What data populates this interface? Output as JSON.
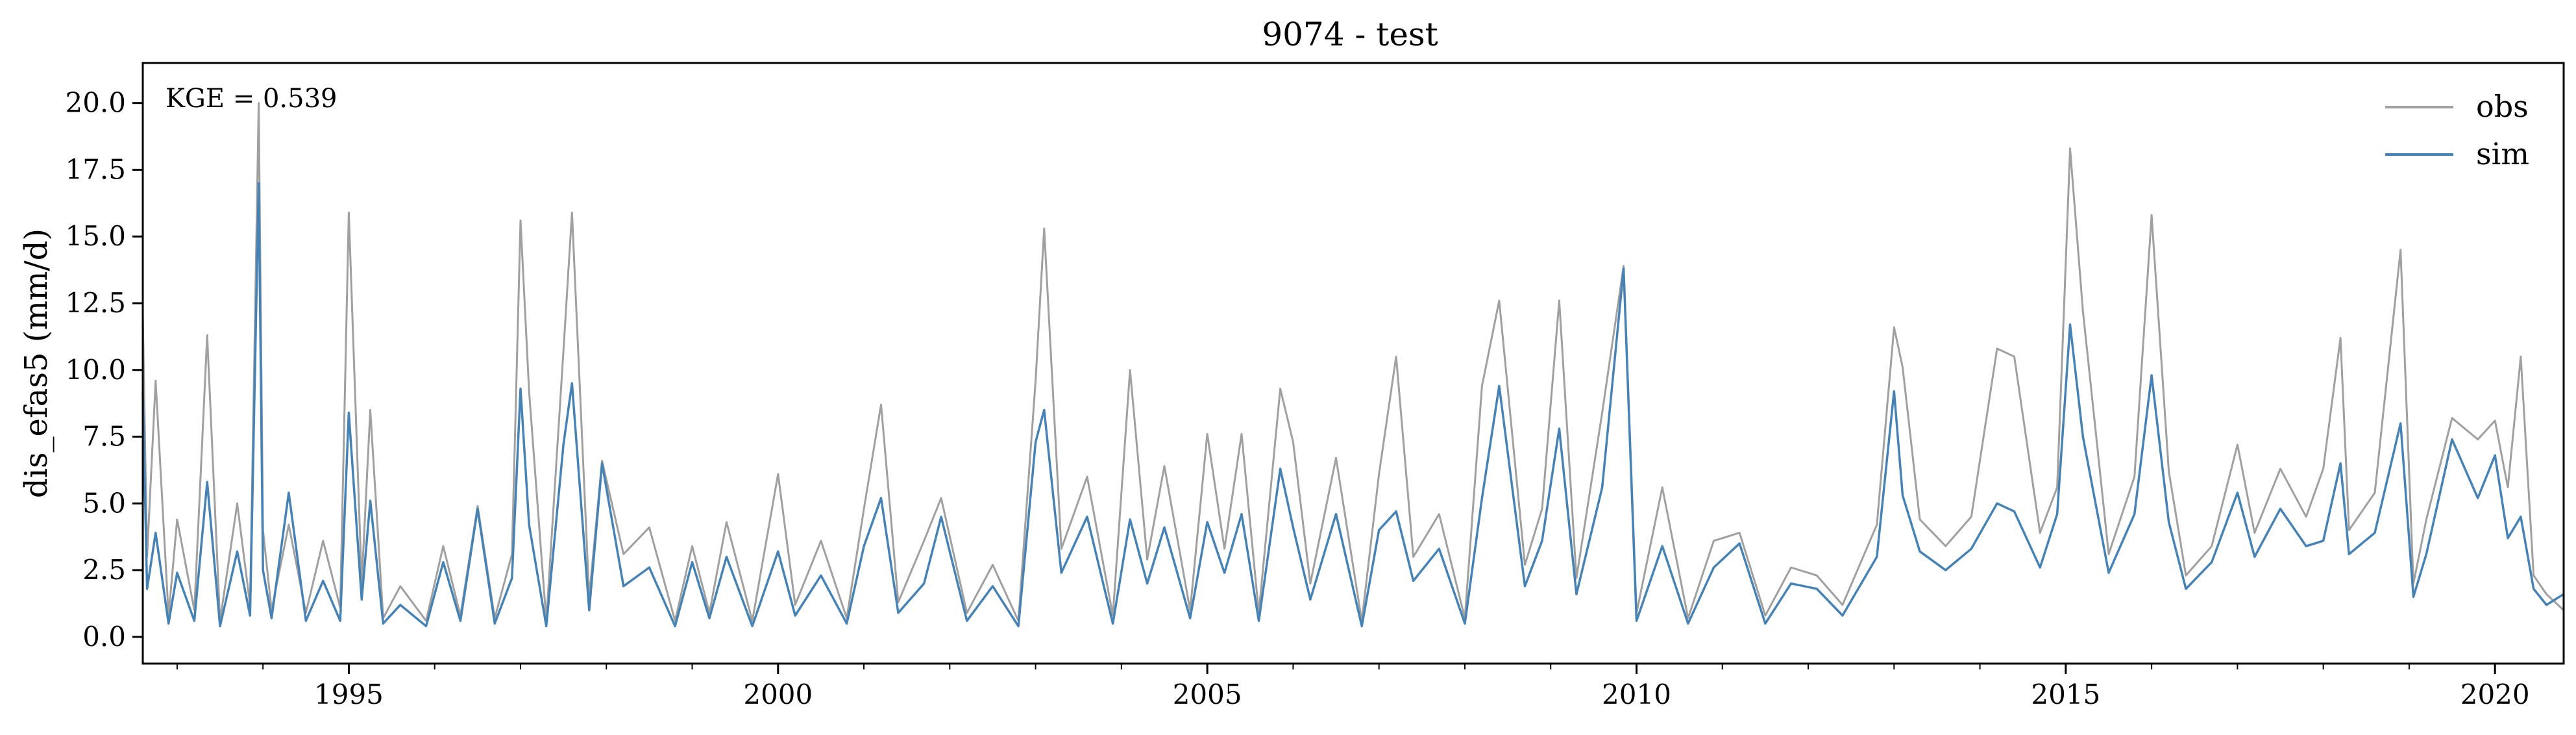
{
  "chart_data": {
    "type": "line",
    "title": "9074 - test",
    "xlabel": "",
    "ylabel": "dis_efas5 (mm/d)",
    "annotation": "KGE = 0.539",
    "xlim": [
      1992.6,
      2020.8
    ],
    "ylim": [
      -1.0,
      21.5
    ],
    "x_ticks": [
      1995,
      2000,
      2005,
      2010,
      2015,
      2020
    ],
    "x_tick_labels": [
      "1995",
      "2000",
      "2005",
      "2010",
      "2015",
      "2020"
    ],
    "y_ticks": [
      0.0,
      2.5,
      5.0,
      7.5,
      10.0,
      12.5,
      15.0,
      17.5,
      20.0
    ],
    "y_tick_labels": [
      "0.0",
      "2.5",
      "5.0",
      "7.5",
      "10.0",
      "12.5",
      "15.0",
      "17.5",
      "20.0"
    ],
    "grid": false,
    "legend_position": "top-right",
    "series": [
      {
        "name": "obs",
        "color": "#a0a0a0",
        "x": [
          1992.6,
          1992.65,
          1992.75,
          1992.9,
          1993.0,
          1993.2,
          1993.35,
          1993.5,
          1993.7,
          1993.85,
          1993.95,
          1994.0,
          1994.1,
          1994.3,
          1994.5,
          1994.7,
          1994.9,
          1995.0,
          1995.15,
          1995.25,
          1995.4,
          1995.6,
          1995.9,
          1996.1,
          1996.3,
          1996.5,
          1996.7,
          1996.9,
          1997.0,
          1997.1,
          1997.3,
          1997.5,
          1997.6,
          1997.8,
          1997.95,
          1998.2,
          1998.5,
          1998.8,
          1999.0,
          1999.2,
          1999.4,
          1999.7,
          2000.0,
          2000.2,
          2000.5,
          2000.8,
          2001.0,
          2001.2,
          2001.4,
          2001.7,
          2001.9,
          2002.2,
          2002.5,
          2002.8,
          2003.0,
          2003.1,
          2003.3,
          2003.6,
          2003.9,
          2004.1,
          2004.3,
          2004.5,
          2004.8,
          2005.0,
          2005.2,
          2005.4,
          2005.6,
          2005.85,
          2006.0,
          2006.2,
          2006.5,
          2006.8,
          2007.0,
          2007.2,
          2007.4,
          2007.7,
          2008.0,
          2008.2,
          2008.4,
          2008.7,
          2008.9,
          2009.1,
          2009.3,
          2009.6,
          2009.85,
          2010.0,
          2010.3,
          2010.6,
          2010.9,
          2011.2,
          2011.5,
          2011.8,
          2012.1,
          2012.4,
          2012.8,
          2013.0,
          2013.1,
          2013.3,
          2013.6,
          2013.9,
          2014.2,
          2014.4,
          2014.7,
          2014.9,
          2015.05,
          2015.2,
          2015.5,
          2015.8,
          2016.0,
          2016.2,
          2016.4,
          2016.7,
          2017.0,
          2017.2,
          2017.5,
          2017.8,
          2018.0,
          2018.2,
          2018.3,
          2018.6,
          2018.9,
          2019.05,
          2019.2,
          2019.5,
          2019.8,
          2020.0,
          2020.15,
          2020.3,
          2020.45,
          2020.6,
          2020.8
        ],
        "y": [
          12.1,
          3.0,
          9.6,
          0.8,
          4.4,
          1.0,
          11.3,
          0.6,
          5.0,
          1.2,
          20.0,
          4.0,
          1.0,
          4.2,
          0.9,
          3.6,
          1.1,
          15.9,
          2.0,
          8.5,
          0.7,
          1.9,
          0.6,
          3.4,
          0.8,
          4.9,
          0.7,
          3.1,
          15.6,
          9.2,
          0.6,
          10.7,
          15.9,
          1.5,
          6.6,
          3.1,
          4.1,
          0.6,
          3.4,
          0.9,
          4.3,
          0.6,
          6.1,
          1.2,
          3.6,
          0.7,
          4.8,
          8.7,
          1.3,
          3.6,
          5.2,
          0.9,
          2.7,
          0.6,
          9.6,
          15.3,
          3.3,
          6.0,
          0.8,
          10.0,
          2.9,
          6.4,
          1.0,
          7.6,
          3.3,
          7.6,
          0.9,
          9.3,
          7.3,
          2.0,
          6.7,
          0.6,
          6.1,
          10.5,
          3.0,
          4.6,
          0.7,
          9.4,
          12.6,
          2.7,
          4.8,
          12.6,
          2.2,
          8.4,
          13.9,
          0.9,
          5.6,
          0.7,
          3.6,
          3.9,
          0.8,
          2.6,
          2.3,
          1.2,
          4.2,
          11.6,
          10.1,
          4.4,
          3.4,
          4.5,
          10.8,
          10.5,
          3.9,
          5.6,
          18.3,
          12.2,
          3.1,
          6.0,
          15.8,
          6.2,
          2.3,
          3.4,
          7.2,
          3.9,
          6.3,
          4.5,
          6.3,
          11.2,
          4.0,
          5.4,
          14.5,
          2.0,
          4.4,
          8.2,
          7.4,
          8.1,
          5.6,
          10.5,
          2.3,
          1.6,
          1.0
        ]
      },
      {
        "name": "sim",
        "color": "#4682b4",
        "x": [
          1992.6,
          1992.65,
          1992.75,
          1992.9,
          1993.0,
          1993.2,
          1993.35,
          1993.5,
          1993.7,
          1993.85,
          1993.95,
          1994.0,
          1994.1,
          1994.3,
          1994.5,
          1994.7,
          1994.9,
          1995.0,
          1995.15,
          1995.25,
          1995.4,
          1995.6,
          1995.9,
          1996.1,
          1996.3,
          1996.5,
          1996.7,
          1996.9,
          1997.0,
          1997.1,
          1997.3,
          1997.5,
          1997.6,
          1997.8,
          1997.95,
          1998.2,
          1998.5,
          1998.8,
          1999.0,
          1999.2,
          1999.4,
          1999.7,
          2000.0,
          2000.2,
          2000.5,
          2000.8,
          2001.0,
          2001.2,
          2001.4,
          2001.7,
          2001.9,
          2002.2,
          2002.5,
          2002.8,
          2003.0,
          2003.1,
          2003.3,
          2003.6,
          2003.9,
          2004.1,
          2004.3,
          2004.5,
          2004.8,
          2005.0,
          2005.2,
          2005.4,
          2005.6,
          2005.85,
          2006.0,
          2006.2,
          2006.5,
          2006.8,
          2007.0,
          2007.2,
          2007.4,
          2007.7,
          2008.0,
          2008.2,
          2008.4,
          2008.7,
          2008.9,
          2009.1,
          2009.3,
          2009.6,
          2009.85,
          2010.0,
          2010.3,
          2010.6,
          2010.9,
          2011.2,
          2011.5,
          2011.8,
          2012.1,
          2012.4,
          2012.8,
          2013.0,
          2013.1,
          2013.3,
          2013.6,
          2013.9,
          2014.2,
          2014.4,
          2014.7,
          2014.9,
          2015.05,
          2015.2,
          2015.5,
          2015.8,
          2016.0,
          2016.2,
          2016.4,
          2016.7,
          2017.0,
          2017.2,
          2017.5,
          2017.8,
          2018.0,
          2018.2,
          2018.3,
          2018.6,
          2018.9,
          2019.05,
          2019.2,
          2019.5,
          2019.8,
          2020.0,
          2020.15,
          2020.3,
          2020.45,
          2020.6,
          2020.8
        ],
        "y": [
          9.2,
          1.8,
          3.9,
          0.5,
          2.4,
          0.6,
          5.8,
          0.4,
          3.2,
          0.8,
          17.0,
          2.5,
          0.7,
          5.4,
          0.6,
          2.1,
          0.6,
          8.4,
          1.4,
          5.1,
          0.5,
          1.2,
          0.4,
          2.8,
          0.6,
          4.8,
          0.5,
          2.2,
          9.3,
          4.2,
          0.4,
          7.2,
          9.5,
          1.0,
          6.5,
          1.9,
          2.6,
          0.4,
          2.8,
          0.7,
          3.0,
          0.4,
          3.2,
          0.8,
          2.3,
          0.5,
          3.4,
          5.2,
          0.9,
          2.0,
          4.5,
          0.6,
          1.9,
          0.4,
          7.3,
          8.5,
          2.4,
          4.5,
          0.5,
          4.4,
          2.0,
          4.1,
          0.7,
          4.3,
          2.4,
          4.6,
          0.6,
          6.3,
          4.1,
          1.4,
          4.6,
          0.4,
          4.0,
          4.7,
          2.1,
          3.3,
          0.5,
          5.2,
          9.4,
          1.9,
          3.6,
          7.8,
          1.6,
          5.6,
          13.8,
          0.6,
          3.4,
          0.5,
          2.6,
          3.5,
          0.5,
          2.0,
          1.8,
          0.8,
          3.0,
          9.2,
          5.3,
          3.2,
          2.5,
          3.3,
          5.0,
          4.7,
          2.6,
          4.6,
          11.7,
          7.5,
          2.4,
          4.6,
          9.8,
          4.3,
          1.8,
          2.8,
          5.4,
          3.0,
          4.8,
          3.4,
          3.6,
          6.5,
          3.1,
          3.9,
          8.0,
          1.5,
          3.1,
          7.4,
          5.2,
          6.8,
          3.7,
          4.5,
          1.8,
          1.2,
          1.6
        ]
      }
    ]
  }
}
